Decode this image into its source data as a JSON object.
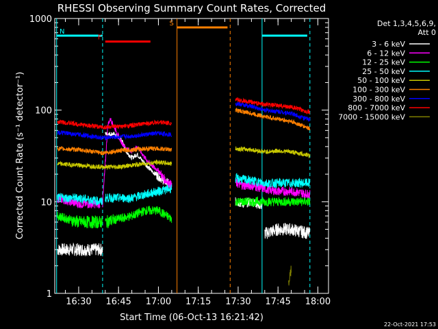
{
  "chart_data": {
    "type": "line",
    "title": "RHESSI Observing Summary Count Rates, Corrected",
    "xlabel": "Start Time (06-Oct-13 16:21:42)",
    "ylabel": "Corrected Count Rate (s⁻¹ detector⁻¹)",
    "yscale": "log",
    "ylim": [
      1,
      1000
    ],
    "xlim_minutes_after_1621": [
      0,
      103
    ],
    "xticks": [
      "16:30",
      "16:45",
      "17:00",
      "17:15",
      "17:30",
      "17:45",
      "18:00"
    ],
    "yticks": [
      "1",
      "10",
      "100",
      "1000"
    ],
    "footer": "22-Oct-2021 17:53",
    "legend": {
      "header1": "Det 1,3,4,5,6,9,",
      "header2": "Att 0",
      "placement": "right"
    },
    "flags": [
      {
        "label": "N",
        "color": "#00ffff",
        "segments": [
          [
            "16:21:42",
            "16:39"
          ],
          [
            "17:39",
            "17:56"
          ]
        ],
        "level": 650
      },
      {
        "label": "F",
        "color": "#ff0000",
        "segments": [
          [
            "16:40",
            "16:57"
          ]
        ],
        "level": 560
      },
      {
        "label": "S",
        "color": "#ff8000",
        "segments": [
          [
            "17:07",
            "17:26"
          ]
        ],
        "level": 800
      }
    ],
    "vertical_markers": [
      {
        "color": "#00ffff",
        "style": "solid",
        "time": "16:21:42"
      },
      {
        "color": "#00ffff",
        "style": "dashed",
        "time": "16:39"
      },
      {
        "color": "#ff8000",
        "style": "solid",
        "time": "17:07"
      },
      {
        "color": "#ff8000",
        "style": "dashed",
        "time": "17:27"
      },
      {
        "color": "#00ffff",
        "style": "solid",
        "time": "17:39"
      },
      {
        "color": "#00ffff",
        "style": "dashed",
        "time": "17:57"
      }
    ],
    "series": [
      {
        "name": "3 - 6 keV",
        "color": "#ffffff",
        "segments": [
          {
            "x": [
              "16:22",
              "16:30",
              "16:39"
            ],
            "y": [
              3,
              3,
              3
            ]
          },
          {
            "x": [
              "16:40",
              "16:43",
              "16:46",
              "16:48",
              "16:50",
              "16:52",
              "16:54",
              "16:56",
              "16:58",
              "17:00",
              "17:02",
              "17:05"
            ],
            "y": [
              55,
              55,
              48,
              35,
              30,
              33,
              28,
              24,
              21,
              19,
              17,
              15
            ]
          },
          {
            "x": [
              "17:29",
              "17:32",
              "17:35",
              "17:39"
            ],
            "y": [
              10,
              9.5,
              10,
              9
            ]
          },
          {
            "x": [
              "17:40",
              "17:45",
              "17:50",
              "17:57"
            ],
            "y": [
              4.5,
              5,
              5,
              4.5
            ]
          }
        ]
      },
      {
        "name": "6 - 12 keV",
        "color": "#ff00ff",
        "segments": [
          {
            "x": [
              "16:22",
              "16:30",
              "16:38"
            ],
            "y": [
              11,
              9.5,
              9.5
            ]
          },
          {
            "x": [
              "16:39",
              "16:41",
              "16:42",
              "16:44",
              "16:46",
              "16:48",
              "16:50",
              "16:52",
              "16:55",
              "16:58",
              "17:00",
              "17:02",
              "17:05"
            ],
            "y": [
              9.5,
              70,
              80,
              60,
              45,
              38,
              36,
              40,
              30,
              24,
              22,
              18,
              15
            ]
          },
          {
            "x": [
              "17:29",
              "17:32",
              "17:35",
              "17:39",
              "17:45",
              "17:50",
              "17:57"
            ],
            "y": [
              16,
              15,
              15,
              14,
              13,
              13,
              12
            ]
          }
        ]
      },
      {
        "name": "12 - 25 keV",
        "color": "#00ff00",
        "segments": [
          {
            "x": [
              "16:22",
              "16:30",
              "16:39"
            ],
            "y": [
              7,
              6,
              6
            ]
          },
          {
            "x": [
              "16:40",
              "16:45",
              "16:50",
              "16:55",
              "17:00",
              "17:05"
            ],
            "y": [
              6,
              6.5,
              7,
              8,
              8,
              6.5
            ]
          },
          {
            "x": [
              "17:29",
              "17:35",
              "17:40",
              "17:45",
              "17:50",
              "17:57"
            ],
            "y": [
              10,
              10,
              10,
              10,
              10,
              10
            ]
          }
        ]
      },
      {
        "name": "25 - 50 keV",
        "color": "#00ffff",
        "segments": [
          {
            "x": [
              "16:22",
              "16:30",
              "16:39"
            ],
            "y": [
              11,
              11,
              10
            ]
          },
          {
            "x": [
              "16:40",
              "16:45",
              "16:50",
              "16:55",
              "17:00",
              "17:05"
            ],
            "y": [
              11,
              11,
              11,
              12,
              13,
              14
            ]
          },
          {
            "x": [
              "17:29",
              "17:35",
              "17:40",
              "17:45",
              "17:50",
              "17:57"
            ],
            "y": [
              18,
              17,
              16,
              16,
              16,
              16
            ]
          }
        ]
      },
      {
        "name": "50 - 100 keV",
        "color": "#c8c800",
        "segments": [
          {
            "x": [
              "16:22",
              "16:30",
              "16:39",
              "16:45",
              "16:50",
              "16:55",
              "17:00",
              "17:05"
            ],
            "y": [
              26,
              25,
              24,
              24,
              25,
              26,
              27,
              26
            ]
          },
          {
            "x": [
              "17:29",
              "17:35",
              "17:40",
              "17:45",
              "17:50",
              "17:57"
            ],
            "y": [
              38,
              37,
              35,
              36,
              35,
              32
            ]
          }
        ]
      },
      {
        "name": "100 - 300 keV",
        "color": "#ff8000",
        "segments": [
          {
            "x": [
              "16:22",
              "16:30",
              "16:39",
              "16:45",
              "16:50",
              "16:55",
              "17:00",
              "17:05"
            ],
            "y": [
              38,
              37,
              34,
              36,
              37,
              38,
              38,
              37
            ]
          },
          {
            "x": [
              "17:29",
              "17:35",
              "17:40",
              "17:45",
              "17:50",
              "17:57"
            ],
            "y": [
              100,
              92,
              85,
              80,
              75,
              63
            ]
          }
        ]
      },
      {
        "name": "300 - 800 keV",
        "color": "#0000ff",
        "segments": [
          {
            "x": [
              "16:22",
              "16:30",
              "16:39",
              "16:45",
              "16:50",
              "16:55",
              "17:00",
              "17:05"
            ],
            "y": [
              57,
              54,
              50,
              51,
              52,
              54,
              56,
              54
            ]
          },
          {
            "x": [
              "17:29",
              "17:35",
              "17:40",
              "17:45",
              "17:50",
              "17:57"
            ],
            "y": [
              118,
              110,
              100,
              97,
              92,
              78
            ]
          }
        ]
      },
      {
        "name": "800 - 7000 keV",
        "color": "#ff0000",
        "segments": [
          {
            "x": [
              "16:22",
              "16:30",
              "16:39",
              "16:45",
              "16:50",
              "16:55",
              "17:00",
              "17:05"
            ],
            "y": [
              75,
              70,
              65,
              66,
              68,
              71,
              74,
              72
            ]
          },
          {
            "x": [
              "17:29",
              "17:35",
              "17:40",
              "17:45",
              "17:50",
              "17:57"
            ],
            "y": [
              130,
              122,
              115,
              112,
              108,
              95
            ]
          }
        ]
      },
      {
        "name": "7000 - 15000 keV",
        "color": "#808000",
        "segments": [
          {
            "x": [
              "17:49",
              "17:50"
            ],
            "y": [
              1.2,
              1.9
            ]
          }
        ]
      }
    ]
  }
}
